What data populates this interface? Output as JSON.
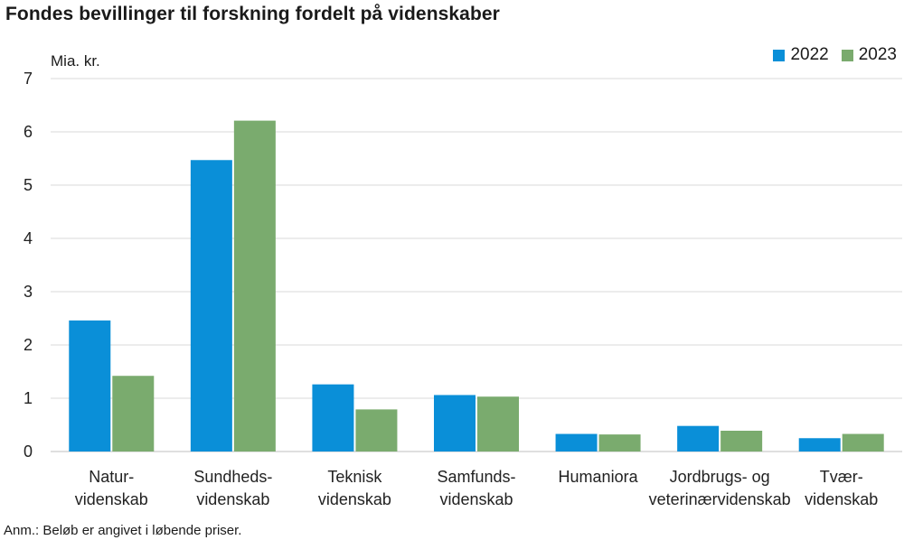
{
  "chart_data": {
    "type": "bar",
    "title": "Fondes bevillinger til forskning fordelt på videnskaber",
    "ylabel": "Mia. kr.",
    "ylim": [
      0,
      7
    ],
    "yticks": [
      "0",
      "1",
      "2",
      "3",
      "4",
      "5",
      "6",
      "7"
    ],
    "categories": [
      [
        "Natur-",
        "videnskab"
      ],
      [
        "Sundheds-",
        "videnskab"
      ],
      [
        "Teknisk",
        "videnskab"
      ],
      [
        "Samfunds-",
        "videnskab"
      ],
      [
        "Humaniora"
      ],
      [
        "Jordbrugs- og",
        "veterinærvidenskab"
      ],
      [
        "Tvær-",
        "videnskab"
      ]
    ],
    "series": [
      {
        "name": "2022",
        "color": "#0a8fd8",
        "values": [
          2.46,
          5.47,
          1.26,
          1.06,
          0.33,
          0.48,
          0.25
        ]
      },
      {
        "name": "2023",
        "color": "#7aab6e",
        "values": [
          1.42,
          6.21,
          0.79,
          1.03,
          0.32,
          0.39,
          0.33
        ]
      }
    ],
    "grid": true,
    "legend_position": "top-right",
    "note": "Anm.: Beløb er angivet i løbende priser."
  }
}
